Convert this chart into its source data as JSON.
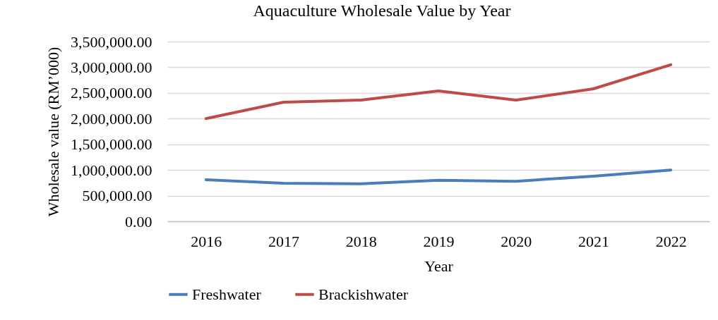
{
  "chart_data": {
    "type": "line",
    "title": "Aquaculture Wholesale Value by Year",
    "xlabel": "Year",
    "ylabel": "Wholesale value (RM’000)",
    "categories": [
      "2016",
      "2017",
      "2018",
      "2019",
      "2020",
      "2021",
      "2022"
    ],
    "series": [
      {
        "name": "Freshwater",
        "color": "#4a7ebb",
        "values": [
          810000,
          740000,
          730000,
          800000,
          780000,
          880000,
          1000000
        ]
      },
      {
        "name": "Brackishwater",
        "color": "#be4b48",
        "values": [
          2000000,
          2320000,
          2360000,
          2540000,
          2360000,
          2580000,
          3050000
        ]
      }
    ],
    "ylim": [
      0,
      3500000
    ],
    "yticks": [
      {
        "value": 0,
        "label": "0.00"
      },
      {
        "value": 500000,
        "label": "500,000.00"
      },
      {
        "value": 1000000,
        "label": "1,000,000.00"
      },
      {
        "value": 1500000,
        "label": "1,500,000.00"
      },
      {
        "value": 2000000,
        "label": "2,000,000.00"
      },
      {
        "value": 2500000,
        "label": "2,500,000.00"
      },
      {
        "value": 3000000,
        "label": "3,000,000.00"
      },
      {
        "value": 3500000,
        "label": "3,500,000.00"
      }
    ],
    "grid": "y",
    "legend": "bottom",
    "marker": "none",
    "line_style": "solid"
  }
}
